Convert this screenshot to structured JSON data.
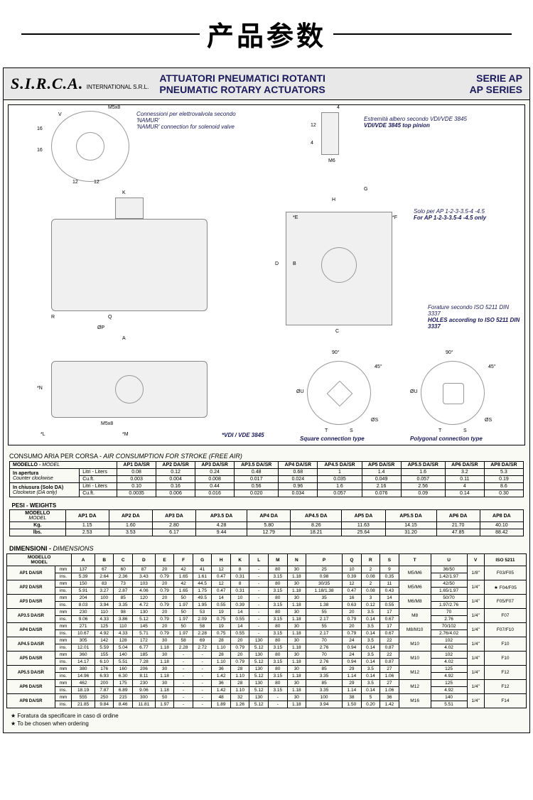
{
  "page_title": "产品参数",
  "logo_text": "S.I.R.C.A.",
  "logo_sub": "INTERNATIONAL S.R.L.",
  "header": {
    "title_it": "ATTUATORI PNEUMATICI ROTANTI",
    "title_en": "PNEUMATIC ROTARY ACTUATORS",
    "series_it": "SERIE AP",
    "series_en": "AP SERIES"
  },
  "diagram": {
    "namur_it": "Connessioni per elettrovalvola secondo 'NAMUR'",
    "namur_en": "'NAMUR' connection for solenoid valve",
    "vdi_it": "Estremità albero secondo VDI/VDE 3845",
    "vdi_en": "VDI/VDE 3845 top pinion",
    "solo_it": "Solo per AP 1-2-3-3.5-4 -4.5",
    "solo_en": "For AP 1-2-3-3.5-4 -4.5 only",
    "holes_it": "Forature secondo ISO 5211 DIN 3337",
    "holes_en": "HOLES according to ISO 5211 DIN 3337",
    "vdi_std": "*VDI / VDE 3845",
    "square_type": "Square connection type",
    "poly_type": "Polygonal connection type",
    "m5x8": "M5x8",
    "m6": "M6"
  },
  "air_section_it": "CONSUMO ARIA PER CORSA -",
  "air_section_en": " AIR CONSUMPTION FOR STROKE (FREE AIR)",
  "air_table": {
    "model_header_it": "MODELLO -",
    "model_header_en": " MODEL",
    "cols": [
      "AP1 DA/SR",
      "AP2 DA/SR",
      "AP3 DA/SR",
      "AP3.5 DA/SR",
      "AP4 DA/SR",
      "AP4.5 DA/SR",
      "AP5 DA/SR",
      "AP5.5 DA/SR",
      "AP6 DA/SR",
      "AP8 DA/SR"
    ],
    "rows": [
      {
        "label_it": "In apertura",
        "label_en": "Counter clockwise",
        "unit": "Litri - Liters",
        "vals": [
          "0.08",
          "0.12",
          "0.24",
          "0.48",
          "0.68",
          "1",
          "1.4",
          "1.6",
          "3.2",
          "5.3"
        ]
      },
      {
        "label_it": "",
        "label_en": "",
        "unit": "Cu.ft.",
        "vals": [
          "0.003",
          "0.004",
          "0.008",
          "0.017",
          "0.024",
          "0.035",
          "0.049",
          "0.057",
          "0.11",
          "0.19"
        ]
      },
      {
        "label_it": "In chiusura (Solo DA)",
        "label_en": "Clockwise (DA only)",
        "unit": "Litri - Liters",
        "vals": [
          "0.10",
          "0.16",
          "0.44",
          "0.56",
          "0.96",
          "1.6",
          "2.16",
          "2.56",
          "4",
          "8.6"
        ]
      },
      {
        "label_it": "",
        "label_en": "",
        "unit": "Cu.ft.",
        "vals": [
          "0.0035",
          "0.006",
          "0.016",
          "0.020",
          "0.034",
          "0.057",
          "0.076",
          "0.09",
          "0.14",
          "0.30"
        ]
      }
    ]
  },
  "weights": {
    "label": "PESI - WEIGHTS",
    "model_it": "MODELLO",
    "model_en": "MODEL",
    "cols": [
      "AP1 DA",
      "AP2 DA",
      "AP3 DA",
      "AP3.5 DA",
      "AP4 DA",
      "AP4.5 DA",
      "AP5 DA",
      "AP5.5 DA",
      "AP6 DA",
      "AP8 DA"
    ],
    "kg": [
      "1.15",
      "1.60",
      "2.80",
      "4.28",
      "5.80",
      "8.26",
      "11.63",
      "14.15",
      "21.70",
      "40.10"
    ],
    "lbs": [
      "2.53",
      "3.53",
      "6.17",
      "9.44",
      "12.79",
      "18.21",
      "25.64",
      "31.20",
      "47.85",
      "88.42"
    ]
  },
  "dim_title_it": "DIMENSIONI -",
  "dim_title_en": " DIMENSIONS",
  "dim_table": {
    "model_hdr_it": "MODELLO",
    "model_hdr_en": "MODEL",
    "cols": [
      "A",
      "B",
      "C",
      "D",
      "E",
      "F",
      "G",
      "H",
      "K",
      "L",
      "M",
      "N",
      "P",
      "Q",
      "R",
      "S",
      "T",
      "U",
      "V",
      "ISO 5211"
    ],
    "rows": [
      {
        "model": "AP1 DA/SR",
        "mm": [
          "137",
          "67",
          "60",
          "87",
          "20",
          "42",
          "41",
          "12",
          "8",
          "-",
          "80",
          "30",
          "25",
          "10",
          "2",
          "9",
          "M5/M6",
          "36/50",
          "1/8\"",
          "F03/F05"
        ],
        "ins": [
          "5.39",
          "2.64",
          "2.36",
          "3.43",
          "0.79",
          "1.65",
          "1.61",
          "0.47",
          "0.31",
          "-",
          "3.15",
          "1.18",
          "0.98",
          "0.39",
          "0.08",
          "0.35",
          "",
          "1.42/1.97",
          "",
          ""
        ]
      },
      {
        "model": "AP2 DA/SR",
        "mm": [
          "150",
          "83",
          "73",
          "103",
          "20",
          "42",
          "44.5",
          "12",
          "8",
          "-",
          "80",
          "30",
          "30/35",
          "12",
          "2",
          "11",
          "M5/M6",
          "42/50",
          "1/4\"",
          "★ F04/F05"
        ],
        "ins": [
          "5.91",
          "3.27",
          "2.87",
          "4.06",
          "0.79",
          "1.65",
          "1.75",
          "0.47",
          "0.31",
          "-",
          "3.15",
          "1.18",
          "1.18/1.38",
          "0.47",
          "0.08",
          "0.43",
          "",
          "1.65/1.97",
          "",
          ""
        ]
      },
      {
        "model": "AP3 DA/SR",
        "mm": [
          "204",
          "100",
          "85",
          "120",
          "20",
          "50",
          "49.5",
          "14",
          "10",
          "-",
          "80",
          "30",
          "35",
          "16",
          "3",
          "14",
          "M6/M8",
          "50/70",
          "1/4\"",
          "F05/F07"
        ],
        "ins": [
          "8.03",
          "3.94",
          "3.35",
          "4.72",
          "0.79",
          "1.97",
          "1.95",
          "0.55",
          "0.39",
          "-",
          "3.15",
          "1.18",
          "1.38",
          "0.63",
          "0.12",
          "0.55",
          "",
          "1.97/2.76",
          "",
          ""
        ]
      },
      {
        "model": "AP3.5 DA/SR",
        "mm": [
          "230",
          "110",
          "98",
          "130",
          "20",
          "50",
          "53",
          "19",
          "14",
          "-",
          "80",
          "30",
          "55",
          "20",
          "3.5",
          "17",
          "M8",
          "70",
          "1/4\"",
          "F07"
        ],
        "ins": [
          "9.06",
          "4.33",
          "3.86",
          "5.12",
          "0.79",
          "1.97",
          "2.09",
          "0.75",
          "0.55",
          "-",
          "3.15",
          "1.18",
          "2.17",
          "0.79",
          "0.14",
          "0.67",
          "",
          "2.76",
          "",
          ""
        ]
      },
      {
        "model": "AP4 DA/SR",
        "mm": [
          "271",
          "125",
          "110",
          "145",
          "20",
          "50",
          "58",
          "19",
          "14",
          "-",
          "80",
          "30",
          "55",
          "20",
          "3.5",
          "17",
          "M8/M10",
          "70/102",
          "1/4\"",
          "F07/F10"
        ],
        "ins": [
          "10.67",
          "4.92",
          "4.33",
          "5.71",
          "0.79",
          "1.97",
          "2.28",
          "0.75",
          "0.55",
          "-",
          "3.15",
          "1.18",
          "2.17",
          "0.79",
          "0.14",
          "0.67",
          "",
          "2.76/4.02",
          "",
          ""
        ]
      },
      {
        "model": "AP4.5 DA/SR",
        "mm": [
          "305",
          "142",
          "128",
          "172",
          "30",
          "58",
          "69",
          "28",
          "20",
          "130",
          "80",
          "30",
          "70",
          "24",
          "3.5",
          "22",
          "M10",
          "102",
          "1/4\"",
          "F10"
        ],
        "ins": [
          "12.01",
          "5.59",
          "5.04",
          "6.77",
          "1.18",
          "2.28",
          "2.72",
          "1.10",
          "0.79",
          "5.12",
          "3.15",
          "1.18",
          "2.76",
          "0.94",
          "0.14",
          "0.87",
          "",
          "4.02",
          "",
          ""
        ]
      },
      {
        "model": "AP5 DA/SR",
        "mm": [
          "360",
          "155",
          "140",
          "185",
          "30",
          "-",
          "-",
          "28",
          "20",
          "130",
          "80",
          "30",
          "70",
          "24",
          "3.5",
          "22",
          "M10",
          "102",
          "1/4\"",
          "F10"
        ],
        "ins": [
          "14.17",
          "6.10",
          "5.51",
          "7.28",
          "1.18",
          "-",
          "-",
          "1.10",
          "0.79",
          "5.12",
          "3.15",
          "1.18",
          "2.76",
          "0.94",
          "0.14",
          "0.87",
          "",
          "4.02",
          "",
          ""
        ]
      },
      {
        "model": "AP5.5 DA/SR",
        "mm": [
          "380",
          "176",
          "160",
          "206",
          "30",
          "-",
          "-",
          "36",
          "28",
          "130",
          "80",
          "30",
          "85",
          "29",
          "3.5",
          "27",
          "M12",
          "125",
          "1/4\"",
          "F12"
        ],
        "ins": [
          "14.96",
          "6.93",
          "6.30",
          "8.11",
          "1.18",
          "-",
          "-",
          "1.42",
          "1.10",
          "5.12",
          "3.15",
          "1.18",
          "3.35",
          "1.14",
          "0.14",
          "1.06",
          "",
          "4.92",
          "",
          ""
        ]
      },
      {
        "model": "AP6 DA/SR",
        "mm": [
          "462",
          "200",
          "175",
          "230",
          "30",
          "-",
          "-",
          "36",
          "28",
          "130",
          "80",
          "30",
          "85",
          "29",
          "3.5",
          "27",
          "M12",
          "125",
          "1/4\"",
          "F12"
        ],
        "ins": [
          "18.19",
          "7.87",
          "6.89",
          "9.06",
          "1.18",
          "-",
          "-",
          "1.42",
          "1.10",
          "5.12",
          "3.15",
          "1.18",
          "3.35",
          "1.14",
          "0.14",
          "1.06",
          "",
          "4.92",
          "",
          ""
        ]
      },
      {
        "model": "AP8 DA/SR",
        "mm": [
          "555",
          "250",
          "215",
          "300",
          "50",
          "-",
          "-",
          "48",
          "32",
          "130",
          "-",
          "30",
          "100",
          "38",
          "5",
          "36",
          "M16",
          "140",
          "1/4\"",
          "F14"
        ],
        "ins": [
          "21.85",
          "9.84",
          "8.46",
          "11.81",
          "1.97",
          "-",
          "-",
          "1.89",
          "1.26",
          "5.12",
          "-",
          "1.18",
          "3.94",
          "1.50",
          "0.20",
          "1.42",
          "",
          "5.51",
          "",
          ""
        ]
      }
    ]
  },
  "footnote_it": "★  Foratura da specificare in caso di ordine",
  "footnote_en": "★  To be chosen when ordering"
}
